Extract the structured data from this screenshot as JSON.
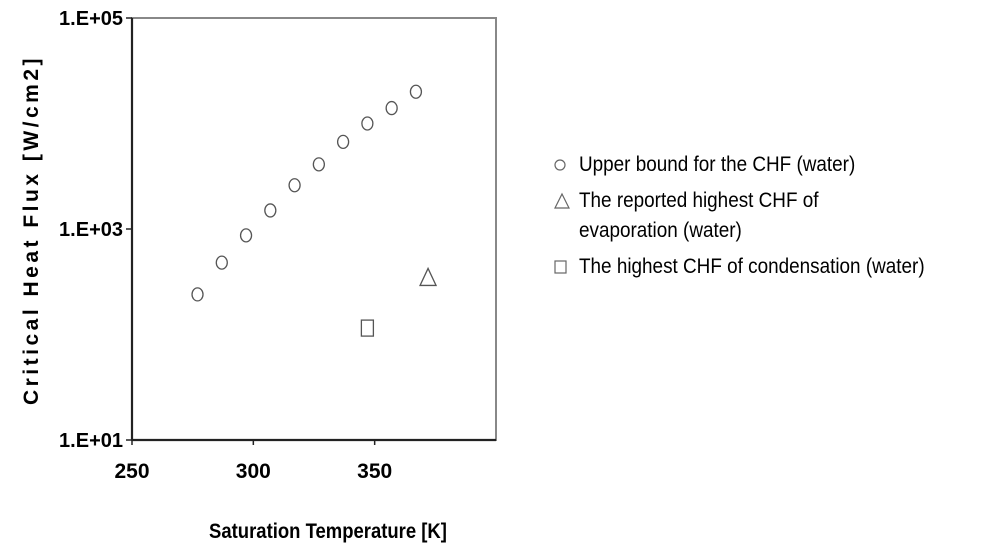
{
  "chart_data": {
    "type": "scatter",
    "title": "",
    "xlabel": "Saturation Temperature [K]",
    "ylabel": "Critical Heat Flux [W/cm2]",
    "xlim": [
      250,
      400
    ],
    "ylim": [
      10,
      100000
    ],
    "yscale": "log",
    "x_ticks": [
      250,
      300,
      350
    ],
    "x_tick_labels": [
      "250",
      "300",
      "350"
    ],
    "y_ticks": [
      10,
      1000,
      100000
    ],
    "y_tick_labels": [
      "1.E+01",
      "1.E+03",
      "1.E+05"
    ],
    "grid": false,
    "legend_position": "right",
    "series": [
      {
        "name": "Upper bound for the CHF (water)",
        "marker": "circle",
        "x": [
          277,
          287,
          297,
          307,
          317,
          327,
          337,
          347,
          357,
          367
        ],
        "y": [
          240,
          480,
          870,
          1500,
          2600,
          4100,
          6700,
          10000,
          14000,
          20000
        ]
      },
      {
        "name": "The reported highest CHF of evaporation (water)",
        "marker": "triangle",
        "x": [
          372
        ],
        "y": [
          340
        ]
      },
      {
        "name": "The highest CHF of condensation (water)",
        "marker": "square",
        "x": [
          347
        ],
        "y": [
          115
        ]
      }
    ]
  },
  "legend": {
    "series0_line1": "Upper bound for the CHF (water)",
    "series1_line1": "The reported highest CHF of",
    "series1_line2": "evaporation (water)",
    "series2_line1": "The highest CHF of condensation (water)"
  },
  "axis": {
    "xlabel": "Saturation Temperature [K]",
    "ylabel": "Critical Heat Flux [W/cm2]"
  }
}
